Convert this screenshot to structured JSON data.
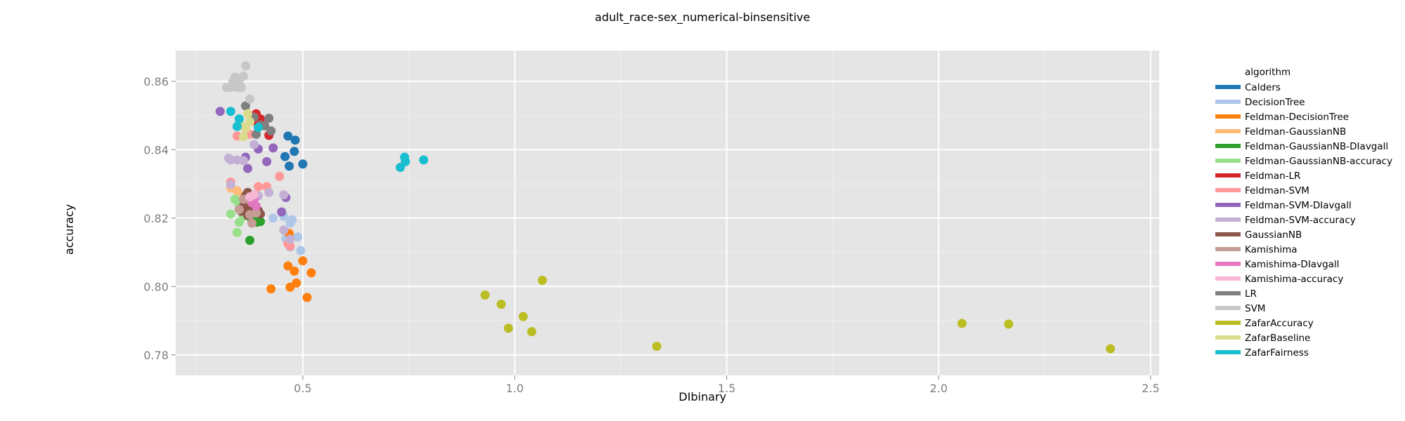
{
  "chart_data": {
    "type": "scatter",
    "title": "adult_race-sex_numerical-binsensitive",
    "xlabel": "DIbinary",
    "ylabel": "accuracy",
    "xlim": [
      0.2,
      2.52
    ],
    "ylim": [
      0.774,
      0.869
    ],
    "x_ticks": [
      0.5,
      1.0,
      1.5,
      2.0,
      2.5
    ],
    "x_tick_labels": [
      "0.5",
      "1.0",
      "1.5",
      "2.0",
      "2.5"
    ],
    "y_ticks": [
      0.78,
      0.8,
      0.82,
      0.84,
      0.86
    ],
    "y_tick_labels": [
      "0.78",
      "0.80",
      "0.82",
      "0.84",
      "0.86"
    ],
    "grid": true,
    "legend_title": "algorithm",
    "legend_position": "right",
    "series": [
      {
        "name": "Calders",
        "color": "#1f77b4",
        "points": [
          [
            0.465,
            0.844
          ],
          [
            0.482,
            0.8428
          ],
          [
            0.458,
            0.838
          ],
          [
            0.48,
            0.8395
          ],
          [
            0.468,
            0.8352
          ],
          [
            0.5,
            0.8358
          ]
        ]
      },
      {
        "name": "DecisionTree",
        "color": "#aec7e8",
        "points": [
          [
            0.455,
            0.8205
          ],
          [
            0.47,
            0.8185
          ],
          [
            0.475,
            0.8195
          ],
          [
            0.46,
            0.814
          ],
          [
            0.47,
            0.8115
          ],
          [
            0.488,
            0.8145
          ],
          [
            0.495,
            0.8105
          ],
          [
            0.43,
            0.82
          ]
        ]
      },
      {
        "name": "Feldman-DecisionTree",
        "color": "#ff7f0e",
        "points": [
          [
            0.468,
            0.8155
          ],
          [
            0.465,
            0.806
          ],
          [
            0.48,
            0.8045
          ],
          [
            0.5,
            0.8075
          ],
          [
            0.52,
            0.804
          ],
          [
            0.485,
            0.801
          ],
          [
            0.47,
            0.7998
          ],
          [
            0.425,
            0.7993
          ],
          [
            0.51,
            0.7968
          ]
        ]
      },
      {
        "name": "Feldman-GaussianNB",
        "color": "#ffbb78",
        "points": [
          [
            0.33,
            0.8288
          ],
          [
            0.345,
            0.828
          ],
          [
            0.36,
            0.8265
          ],
          [
            0.37,
            0.825
          ],
          [
            0.35,
            0.824
          ]
        ]
      },
      {
        "name": "Feldman-GaussianNB-DIavgall",
        "color": "#2ca02c",
        "points": [
          [
            0.375,
            0.8135
          ],
          [
            0.38,
            0.8195
          ],
          [
            0.392,
            0.8188
          ],
          [
            0.4,
            0.819
          ],
          [
            0.385,
            0.821
          ]
        ]
      },
      {
        "name": "Feldman-GaussianNB-accuracy",
        "color": "#98df8a",
        "points": [
          [
            0.34,
            0.8255
          ],
          [
            0.35,
            0.824
          ],
          [
            0.33,
            0.8212
          ],
          [
            0.35,
            0.8188
          ],
          [
            0.345,
            0.8158
          ],
          [
            0.37,
            0.8225
          ],
          [
            0.36,
            0.8205
          ]
        ]
      },
      {
        "name": "Feldman-LR",
        "color": "#d62728",
        "points": [
          [
            0.39,
            0.8505
          ],
          [
            0.4,
            0.849
          ],
          [
            0.41,
            0.847
          ],
          [
            0.42,
            0.8442
          ],
          [
            0.385,
            0.8485
          ]
        ]
      },
      {
        "name": "Feldman-SVM",
        "color": "#ff9896",
        "points": [
          [
            0.33,
            0.8305
          ],
          [
            0.345,
            0.844
          ],
          [
            0.375,
            0.8445
          ],
          [
            0.395,
            0.8292
          ],
          [
            0.415,
            0.8292
          ],
          [
            0.445,
            0.8322
          ],
          [
            0.465,
            0.8125
          ],
          [
            0.47,
            0.8118
          ]
        ]
      },
      {
        "name": "Feldman-SVM-DIavgall",
        "color": "#9467bd",
        "points": [
          [
            0.305,
            0.8512
          ],
          [
            0.365,
            0.8378
          ],
          [
            0.37,
            0.8345
          ],
          [
            0.395,
            0.8402
          ],
          [
            0.415,
            0.8365
          ],
          [
            0.43,
            0.8405
          ],
          [
            0.45,
            0.8218
          ],
          [
            0.46,
            0.826
          ]
        ]
      },
      {
        "name": "Feldman-SVM-accuracy",
        "color": "#c5b0d5",
        "points": [
          [
            0.325,
            0.8375
          ],
          [
            0.33,
            0.837
          ],
          [
            0.345,
            0.837
          ],
          [
            0.36,
            0.8368
          ],
          [
            0.385,
            0.8415
          ],
          [
            0.395,
            0.8265
          ],
          [
            0.42,
            0.8275
          ],
          [
            0.455,
            0.8268
          ],
          [
            0.455,
            0.8165
          ],
          [
            0.47,
            0.8138
          ],
          [
            0.33,
            0.8298
          ]
        ]
      },
      {
        "name": "GaussianNB",
        "color": "#8c564b",
        "points": [
          [
            0.36,
            0.8235
          ],
          [
            0.365,
            0.8265
          ],
          [
            0.37,
            0.8275
          ],
          [
            0.375,
            0.822
          ],
          [
            0.38,
            0.8235
          ],
          [
            0.385,
            0.822
          ],
          [
            0.39,
            0.8232
          ],
          [
            0.395,
            0.8222
          ],
          [
            0.4,
            0.8212
          ],
          [
            0.355,
            0.822
          ],
          [
            0.37,
            0.8208
          ]
        ]
      },
      {
        "name": "Kamishima",
        "color": "#c49c94",
        "points": [
          [
            0.35,
            0.8225
          ],
          [
            0.375,
            0.821
          ],
          [
            0.38,
            0.8185
          ],
          [
            0.36,
            0.8255
          ],
          [
            0.39,
            0.8215
          ]
        ]
      },
      {
        "name": "Kamishima-DIavgall",
        "color": "#e377c2",
        "points": [
          [
            0.38,
            0.8245
          ],
          [
            0.39,
            0.8235
          ],
          [
            0.385,
            0.8255
          ]
        ]
      },
      {
        "name": "Kamishima-accuracy",
        "color": "#f7b6d2",
        "points": [
          [
            0.385,
            0.8268
          ],
          [
            0.375,
            0.8262
          ]
        ]
      },
      {
        "name": "LR",
        "color": "#7f7f7f",
        "points": [
          [
            0.365,
            0.8528
          ],
          [
            0.385,
            0.8495
          ],
          [
            0.4,
            0.8472
          ],
          [
            0.39,
            0.8445
          ],
          [
            0.42,
            0.8492
          ],
          [
            0.425,
            0.8455
          ],
          [
            0.41,
            0.847
          ]
        ]
      },
      {
        "name": "SVM",
        "color": "#c7c7c7",
        "points": [
          [
            0.33,
            0.8582
          ],
          [
            0.34,
            0.8612
          ],
          [
            0.35,
            0.8598
          ],
          [
            0.36,
            0.8615
          ],
          [
            0.345,
            0.8582
          ],
          [
            0.355,
            0.8582
          ],
          [
            0.365,
            0.8645
          ],
          [
            0.375,
            0.8548
          ],
          [
            0.335,
            0.8598
          ],
          [
            0.32,
            0.8582
          ]
        ]
      },
      {
        "name": "ZafarAccuracy",
        "color": "#bcbd22",
        "points": [
          [
            0.93,
            0.7975
          ],
          [
            0.968,
            0.7948
          ],
          [
            0.985,
            0.7878
          ],
          [
            1.02,
            0.7912
          ],
          [
            1.04,
            0.7868
          ],
          [
            1.065,
            0.8018
          ],
          [
            1.335,
            0.7825
          ],
          [
            2.055,
            0.7892
          ],
          [
            2.165,
            0.789
          ],
          [
            2.405,
            0.7818
          ]
        ]
      },
      {
        "name": "ZafarBaseline",
        "color": "#dbdb8d",
        "points": [
          [
            0.355,
            0.847
          ],
          [
            0.36,
            0.8438
          ],
          [
            0.37,
            0.8505
          ],
          [
            0.365,
            0.8462
          ],
          [
            0.375,
            0.8482
          ]
        ]
      },
      {
        "name": "ZafarFairness",
        "color": "#17becf",
        "points": [
          [
            0.33,
            0.8512
          ],
          [
            0.345,
            0.8468
          ],
          [
            0.35,
            0.849
          ],
          [
            0.395,
            0.8465
          ],
          [
            0.73,
            0.8348
          ],
          [
            0.74,
            0.8378
          ],
          [
            0.742,
            0.8365
          ],
          [
            0.785,
            0.837
          ]
        ]
      }
    ]
  }
}
